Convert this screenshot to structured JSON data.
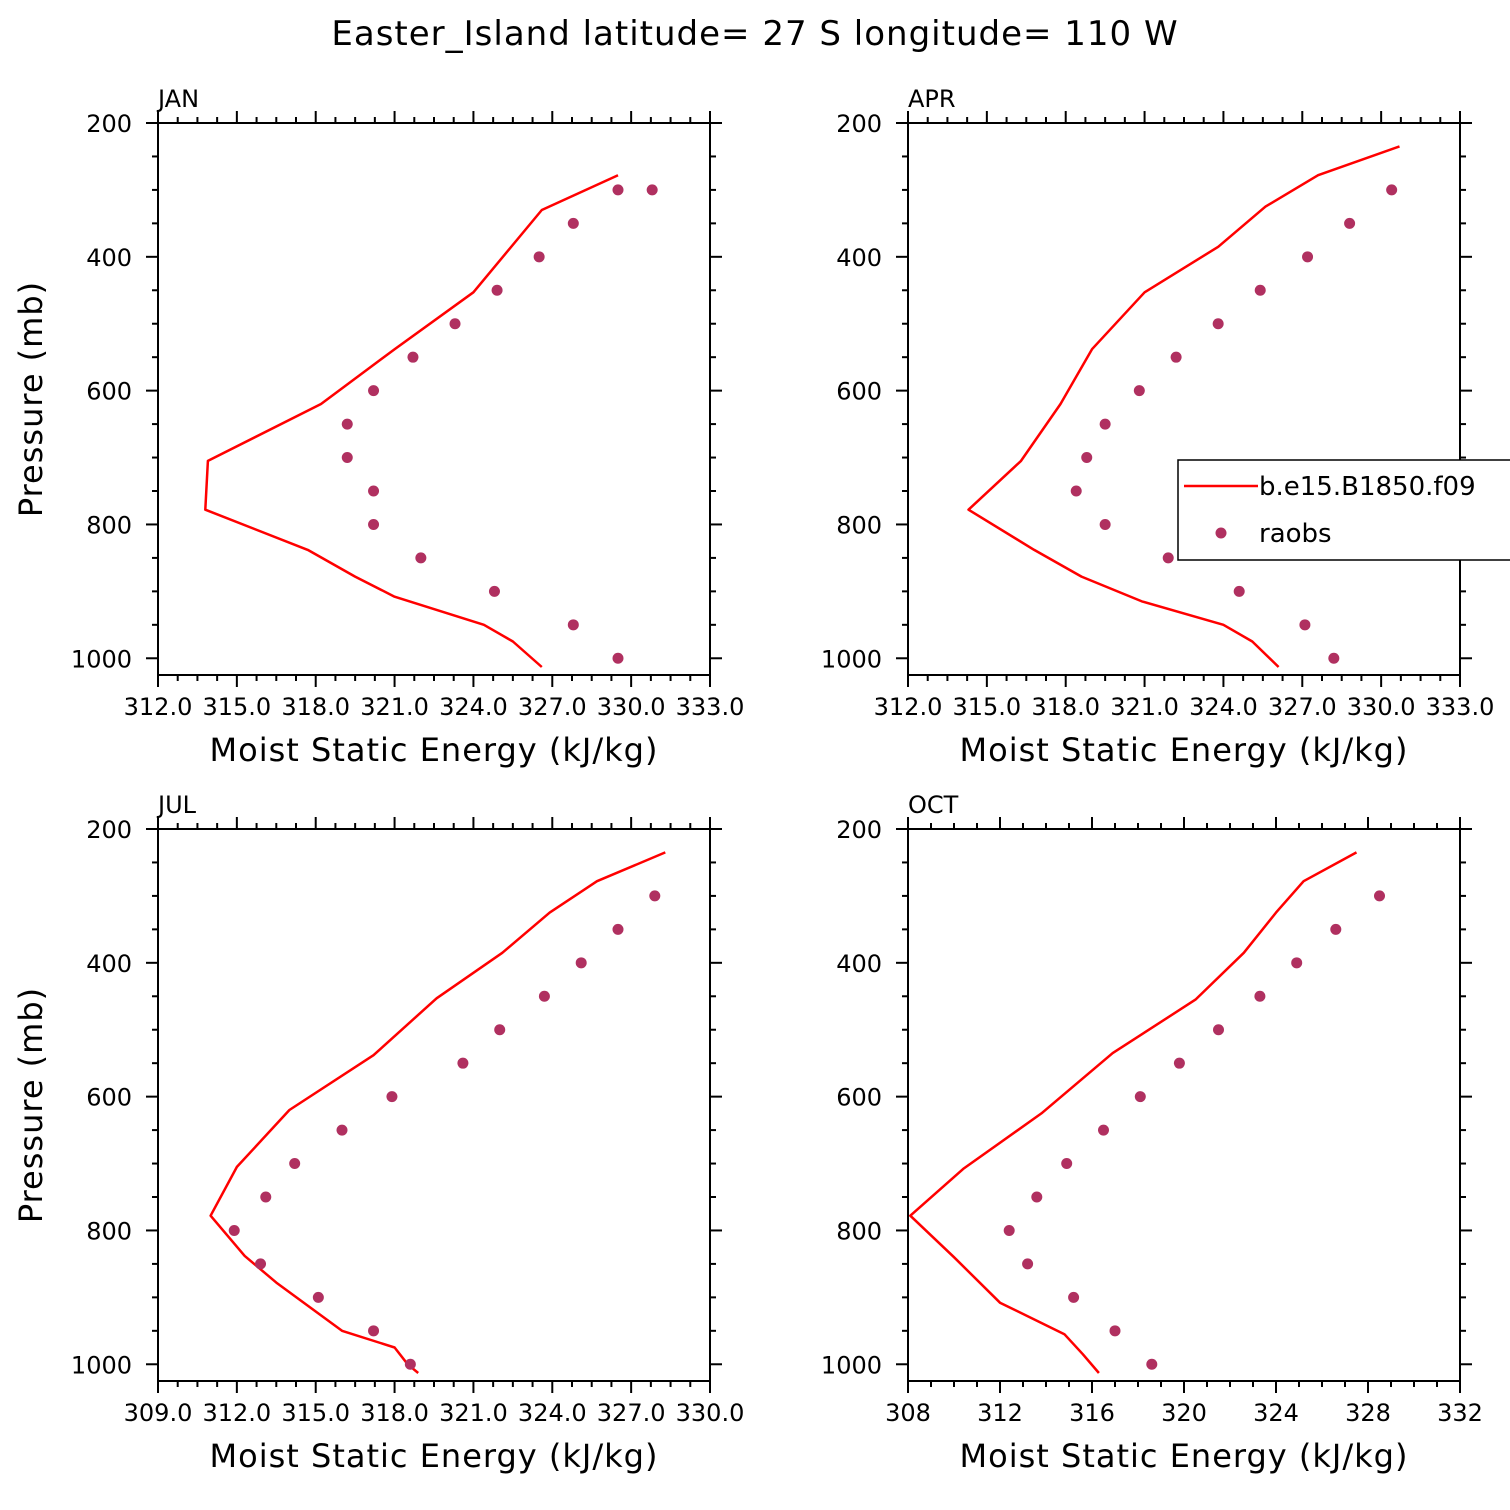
{
  "suptitle": "Easter_Island  latitude= 27 S longitude= 110 W",
  "colors": {
    "model": "#ff0000",
    "obs": "#b03060",
    "axes": "#000000"
  },
  "legend": {
    "model_label": "b.e15.B1850.f09",
    "obs_label": "raobs",
    "panel": "APR",
    "placement": "center-right"
  },
  "chart_data": [
    {
      "type": "line",
      "title": "JAN",
      "xlabel": "Moist Static Energy (kJ/kg)",
      "ylabel": "Pressure (mb)",
      "xlim": [
        312.0,
        333.0
      ],
      "ylim": [
        200,
        1025
      ],
      "y_inverted": true,
      "xticks": [
        "312.0",
        "315.0",
        "318.0",
        "321.0",
        "324.0",
        "327.0",
        "330.0",
        "333.0"
      ],
      "yticks": [
        "200",
        "400",
        "600",
        "800",
        "1000"
      ],
      "series": [
        {
          "name": "b.e15.B1850.f09",
          "style": "line",
          "x": [
            326.6,
            325.5,
            324.4,
            321.0,
            319.5,
            317.7,
            313.8,
            313.9,
            318.2,
            321.0,
            324.0,
            326.6,
            329.5
          ],
          "y": [
            1013,
            975,
            950,
            908,
            878,
            838,
            778,
            705,
            620,
            538,
            453,
            330,
            278
          ]
        },
        {
          "name": "raobs",
          "style": "scatter",
          "x": [
            329.5,
            327.8,
            324.8,
            322.0,
            320.2,
            320.2,
            319.2,
            319.2,
            320.2,
            321.7,
            323.3,
            324.9,
            326.5,
            327.8,
            329.5,
            330.8
          ],
          "y": [
            1000,
            950,
            900,
            850,
            800,
            750,
            700,
            650,
            600,
            550,
            500,
            450,
            400,
            350,
            300,
            300
          ]
        }
      ]
    },
    {
      "type": "line",
      "title": "APR",
      "xlabel": "Moist Static Energy (kJ/kg)",
      "ylabel": "",
      "xlim": [
        312.0,
        333.0
      ],
      "ylim": [
        200,
        1025
      ],
      "y_inverted": true,
      "xticks": [
        "312.0",
        "315.0",
        "318.0",
        "321.0",
        "324.0",
        "327.0",
        "330.0",
        "333.0"
      ],
      "yticks": [
        "200",
        "400",
        "600",
        "800",
        "1000"
      ],
      "series": [
        {
          "name": "b.e15.B1850.f09",
          "style": "line",
          "x": [
            326.1,
            325.1,
            324.0,
            320.9,
            318.6,
            316.8,
            314.3,
            316.3,
            317.8,
            319.0,
            321.0,
            323.8,
            325.6,
            327.6,
            330.7
          ],
          "y": [
            1013,
            975,
            950,
            915,
            878,
            838,
            778,
            705,
            620,
            538,
            453,
            385,
            325,
            278,
            235
          ]
        },
        {
          "name": "raobs",
          "style": "scatter",
          "x": [
            328.2,
            327.1,
            324.6,
            321.9,
            319.5,
            318.4,
            318.8,
            319.5,
            320.8,
            322.2,
            323.8,
            325.4,
            327.2,
            328.8,
            330.4
          ],
          "y": [
            1000,
            950,
            900,
            850,
            800,
            750,
            700,
            650,
            600,
            550,
            500,
            450,
            400,
            350,
            300
          ]
        }
      ]
    },
    {
      "type": "line",
      "title": "JUL",
      "xlabel": "Moist Static Energy (kJ/kg)",
      "ylabel": "Pressure (mb)",
      "xlim": [
        309.0,
        330.0
      ],
      "ylim": [
        200,
        1025
      ],
      "y_inverted": true,
      "xticks": [
        "309.0",
        "312.0",
        "315.0",
        "318.0",
        "321.0",
        "324.0",
        "327.0",
        "330.0"
      ],
      "yticks": [
        "200",
        "400",
        "600",
        "800",
        "1000"
      ],
      "series": [
        {
          "name": "b.e15.B1850.f09",
          "style": "line",
          "x": [
            318.9,
            318.5,
            318.0,
            316.0,
            313.5,
            312.3,
            311.0,
            312.0,
            314.0,
            317.2,
            319.6,
            322.1,
            323.9,
            325.7,
            328.3
          ],
          "y": [
            1013,
            1000,
            975,
            950,
            878,
            838,
            778,
            705,
            620,
            538,
            453,
            385,
            325,
            278,
            235
          ]
        },
        {
          "name": "raobs",
          "style": "scatter",
          "x": [
            318.6,
            317.2,
            315.1,
            312.9,
            311.9,
            313.1,
            314.2,
            316.0,
            317.9,
            320.6,
            322.0,
            323.7,
            325.1,
            326.5,
            327.9
          ],
          "y": [
            1000,
            950,
            900,
            850,
            800,
            750,
            700,
            650,
            600,
            550,
            500,
            450,
            400,
            350,
            300
          ]
        }
      ]
    },
    {
      "type": "line",
      "title": "OCT",
      "xlabel": "Moist Static Energy (kJ/kg)",
      "ylabel": "",
      "xlim": [
        308,
        332
      ],
      "ylim": [
        200,
        1025
      ],
      "y_inverted": true,
      "xticks": [
        "308",
        "312",
        "316",
        "320",
        "324",
        "328",
        "332"
      ],
      "yticks": [
        "200",
        "400",
        "600",
        "800",
        "1000"
      ],
      "series": [
        {
          "name": "b.e15.B1850.f09",
          "style": "line",
          "x": [
            316.3,
            315.6,
            314.8,
            312.0,
            310.0,
            308.1,
            310.4,
            313.8,
            316.9,
            320.5,
            322.6,
            324.0,
            325.2,
            327.5
          ],
          "y": [
            1013,
            985,
            955,
            908,
            840,
            778,
            708,
            625,
            535,
            455,
            385,
            325,
            278,
            235
          ]
        },
        {
          "name": "raobs",
          "style": "scatter",
          "x": [
            318.6,
            317.0,
            315.2,
            313.2,
            312.4,
            313.6,
            314.9,
            316.5,
            318.1,
            319.8,
            321.5,
            323.3,
            324.9,
            326.6,
            328.5
          ],
          "y": [
            1000,
            950,
            900,
            850,
            800,
            750,
            700,
            650,
            600,
            550,
            500,
            450,
            400,
            350,
            300
          ]
        }
      ]
    }
  ]
}
